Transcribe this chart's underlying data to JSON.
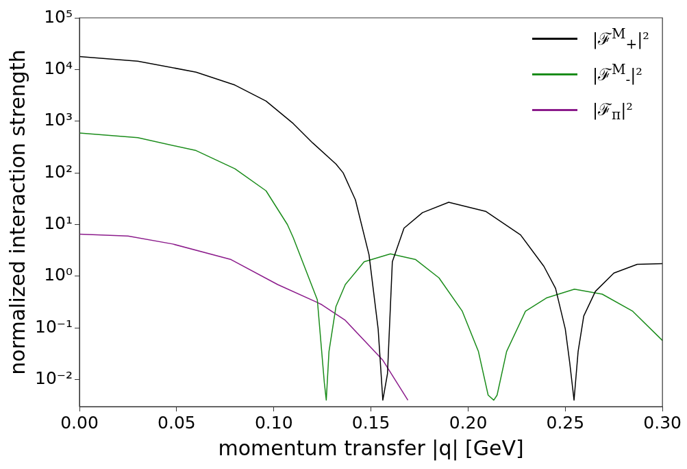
{
  "chart_data": {
    "type": "line",
    "xlabel": "momentum transfer |q| [GeV]",
    "ylabel": "normalized interaction strength",
    "log": "y",
    "xlim": [
      0,
      0.3
    ],
    "xticks": [
      {
        "value": 0,
        "label": "0.00"
      },
      {
        "value": 0.05,
        "label": "0.05"
      },
      {
        "value": 0.1,
        "label": "0.10"
      },
      {
        "value": 0.15,
        "label": "0.15"
      },
      {
        "value": 0.2,
        "label": "0.20"
      },
      {
        "value": 0.25,
        "label": "0.25"
      },
      {
        "value": 0.3,
        "label": "0.30"
      }
    ],
    "ylim": [
      0.003,
      100000
    ],
    "yticks": [
      {
        "value": 0.01,
        "label": "10⁻²"
      },
      {
        "value": 0.1,
        "label": "10⁻¹"
      },
      {
        "value": 1,
        "label": "10⁰"
      },
      {
        "value": 10,
        "label": "10¹"
      },
      {
        "value": 100,
        "label": "10²"
      },
      {
        "value": 1000,
        "label": "10³"
      },
      {
        "value": 10000,
        "label": "10⁴"
      },
      {
        "value": 100000,
        "label": "10⁵"
      }
    ],
    "grid": false,
    "legend": "top right",
    "marker": "none",
    "line_style": "solid",
    "series": [
      {
        "name": "|ℱ$^{M}$$_{+}$|²",
        "color": "#000000",
        "x": [
          0,
          0.03,
          0.06,
          0.08,
          0.096,
          0.11,
          0.12,
          0.132,
          0.1357,
          0.142,
          0.149,
          0.1537,
          0.1561,
          0.1585,
          0.161,
          0.167,
          0.1765,
          0.19,
          0.209,
          0.227,
          0.239,
          0.245,
          0.25,
          0.2523,
          0.2545,
          0.2566,
          0.2595,
          0.2655,
          0.275,
          0.287,
          0.3
        ],
        "values": [
          17800,
          14500,
          8900,
          5000,
          2450,
          900,
          380,
          148,
          100,
          30,
          2.6,
          0.095,
          0.004,
          0.013,
          1.9,
          8.5,
          17,
          27,
          18,
          6.3,
          1.55,
          0.58,
          0.095,
          0.021,
          0.004,
          0.035,
          0.17,
          0.51,
          1.15,
          1.7,
          1.75
        ]
      },
      {
        "name": "|ℱ$^{M}$$_{-}$|²",
        "color": "#1a8c1a",
        "x": [
          0,
          0.03,
          0.06,
          0.08,
          0.096,
          0.107,
          0.11,
          0.1224,
          0.126,
          0.127,
          0.1284,
          0.132,
          0.1368,
          0.1465,
          0.16,
          0.173,
          0.185,
          0.197,
          0.2053,
          0.2103,
          0.2132,
          0.2149,
          0.2198,
          0.2295,
          0.2403,
          0.2547,
          0.269,
          0.2847,
          0.3
        ],
        "values": [
          590,
          480,
          270,
          120,
          45,
          10,
          5.6,
          0.35,
          0.0087,
          0.004,
          0.035,
          0.26,
          0.69,
          1.9,
          2.7,
          2.1,
          0.93,
          0.21,
          0.035,
          0.005,
          0.004,
          0.005,
          0.035,
          0.21,
          0.38,
          0.56,
          0.45,
          0.21,
          0.057
        ]
      },
      {
        "name": "|ℱ$_{π}$|²",
        "color": "#8b1a8b",
        "x": [
          0,
          0.025,
          0.048,
          0.078,
          0.102,
          0.1224,
          0.1248,
          0.1368,
          0.156,
          0.169
        ],
        "values": [
          6.5,
          6,
          4.2,
          2.1,
          0.69,
          0.31,
          0.28,
          0.14,
          0.024,
          0.004
        ]
      }
    ]
  }
}
